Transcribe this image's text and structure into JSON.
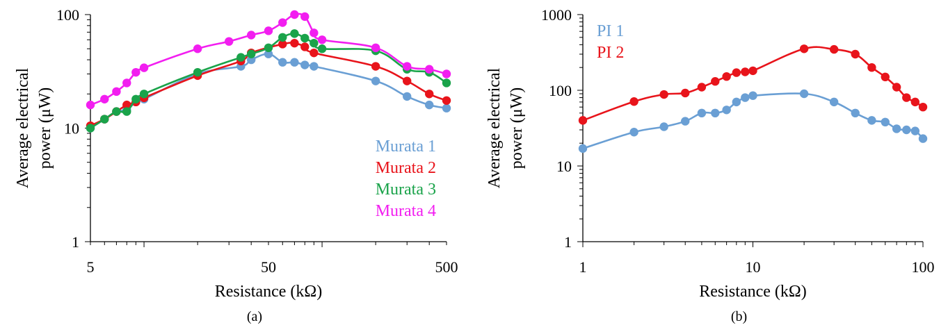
{
  "chart_data": [
    {
      "type": "line",
      "panel_label": "(a)",
      "xlabel": "Resistance (kΩ)",
      "ylabel": [
        "Average electrical",
        "power (μW)"
      ],
      "xscale": "log",
      "yscale": "log",
      "xlim": [
        5,
        500
      ],
      "ylim": [
        1,
        100
      ],
      "xticks": [
        {
          "value": 5,
          "label": "5"
        },
        {
          "value": 50,
          "label": "50"
        },
        {
          "value": 500,
          "label": "500"
        }
      ],
      "yticks": [
        {
          "value": 1,
          "label": "1"
        },
        {
          "value": 10,
          "label": "10"
        },
        {
          "value": 100,
          "label": "100"
        }
      ],
      "legend_position": "bottom-right",
      "series": [
        {
          "name": "Murata 1",
          "color": "#6a9fd4",
          "x": [
            5,
            6,
            7,
            8,
            9,
            10,
            20,
            35,
            40,
            50,
            60,
            70,
            80,
            90,
            200,
            300,
            400,
            500
          ],
          "y": [
            10,
            12,
            14,
            14.5,
            17,
            18,
            30,
            35,
            40,
            45,
            38,
            38,
            36,
            35,
            26,
            19,
            16,
            15
          ]
        },
        {
          "name": "Murata 2",
          "color": "#e8141b",
          "x": [
            5,
            6,
            7,
            8,
            9,
            10,
            20,
            35,
            40,
            60,
            70,
            80,
            90,
            200,
            300,
            400,
            500
          ],
          "y": [
            10.5,
            12,
            14,
            16,
            17,
            18.5,
            29,
            39,
            46,
            55,
            56,
            52,
            46,
            35,
            26,
            20,
            17.5
          ]
        },
        {
          "name": "Murata 3",
          "color": "#1aa34a",
          "x": [
            5,
            6,
            7,
            8,
            9,
            10,
            20,
            35,
            40,
            50,
            60,
            70,
            80,
            90,
            100,
            200,
            300,
            400,
            500
          ],
          "y": [
            10,
            12,
            14,
            14,
            18,
            20,
            31,
            42,
            45,
            51,
            63,
            68,
            62,
            56,
            50,
            48,
            33,
            31,
            25
          ]
        },
        {
          "name": "Murata 4",
          "color": "#f21ef0",
          "x": [
            5,
            6,
            7,
            8,
            9,
            10,
            20,
            30,
            40,
            50,
            60,
            70,
            80,
            90,
            100,
            200,
            300,
            400,
            500
          ],
          "y": [
            16,
            18,
            21,
            25,
            31,
            34,
            50,
            58,
            66,
            72,
            85,
            100,
            96,
            69,
            60,
            51,
            35,
            33,
            30
          ]
        }
      ]
    },
    {
      "type": "line",
      "panel_label": "(b)",
      "xlabel": "Resistance (kΩ)",
      "ylabel": [
        "Average electrical",
        "power (μW)"
      ],
      "xscale": "log",
      "yscale": "log",
      "xlim": [
        1,
        100
      ],
      "ylim": [
        1,
        1000
      ],
      "xticks": [
        {
          "value": 1,
          "label": "1"
        },
        {
          "value": 10,
          "label": "10"
        },
        {
          "value": 100,
          "label": "100"
        }
      ],
      "yticks": [
        {
          "value": 1,
          "label": "1"
        },
        {
          "value": 10,
          "label": "10"
        },
        {
          "value": 100,
          "label": "100"
        },
        {
          "value": 1000,
          "label": "1000"
        }
      ],
      "legend_position": "top-left",
      "series": [
        {
          "name": "PI 1",
          "color": "#6a9fd4",
          "x": [
            1,
            2,
            3,
            4,
            5,
            6,
            7,
            8,
            9,
            10,
            20,
            30,
            40,
            50,
            60,
            70,
            80,
            90,
            100
          ],
          "y": [
            17,
            28,
            33,
            39,
            50,
            50,
            55,
            70,
            80,
            85,
            90,
            70,
            50,
            40,
            38,
            31,
            30,
            29,
            23
          ]
        },
        {
          "name": "PI 2",
          "color": "#e8141b",
          "x": [
            1,
            2,
            3,
            4,
            5,
            6,
            7,
            8,
            9,
            10,
            20,
            30,
            40,
            50,
            60,
            70,
            80,
            90,
            100
          ],
          "y": [
            40,
            71,
            88,
            92,
            110,
            131,
            152,
            171,
            175,
            181,
            353,
            347,
            300,
            200,
            150,
            110,
            80,
            70,
            60
          ]
        }
      ]
    }
  ]
}
